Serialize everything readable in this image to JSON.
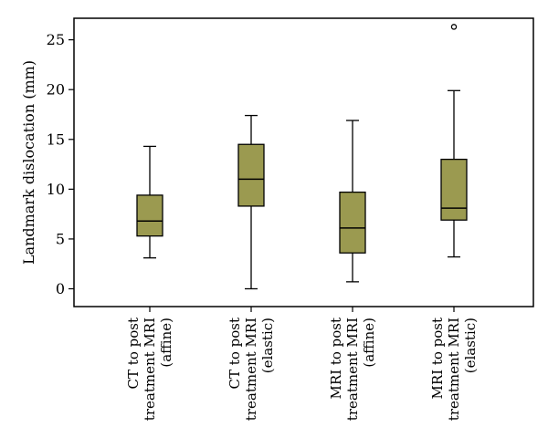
{
  "chart_data": {
    "type": "boxplot",
    "title": "",
    "xlabel": "",
    "ylabel": "Landmark dislocation (mm)",
    "ylim": [
      -1.5,
      27.5
    ],
    "yticks": [
      0,
      5,
      10,
      15,
      20,
      25
    ],
    "box_color": "#9b9a50",
    "line_color": "#000000",
    "categories": [
      {
        "lines": [
          "CT to post",
          "treatment MRI",
          "(affine)"
        ]
      },
      {
        "lines": [
          "CT to post",
          "treatment MRI",
          "(elastic)"
        ]
      },
      {
        "lines": [
          "MRI to post",
          "treatment MRI",
          "(affine)"
        ]
      },
      {
        "lines": [
          "MRI to post",
          "treatment MRI",
          "(elastic)"
        ]
      }
    ],
    "boxes": [
      {
        "whisker_low": 3.1,
        "q1": 5.3,
        "median": 6.8,
        "q3": 9.4,
        "whisker_high": 14.3,
        "outliers": []
      },
      {
        "whisker_low": 0.0,
        "q1": 8.3,
        "median": 11.0,
        "q3": 14.5,
        "whisker_high": 17.4,
        "outliers": []
      },
      {
        "whisker_low": 0.7,
        "q1": 3.6,
        "median": 6.1,
        "q3": 9.7,
        "whisker_high": 16.9,
        "outliers": []
      },
      {
        "whisker_low": 3.2,
        "q1": 6.9,
        "median": 8.1,
        "q3": 13.0,
        "whisker_high": 19.9,
        "outliers": [
          26.3
        ]
      }
    ]
  }
}
